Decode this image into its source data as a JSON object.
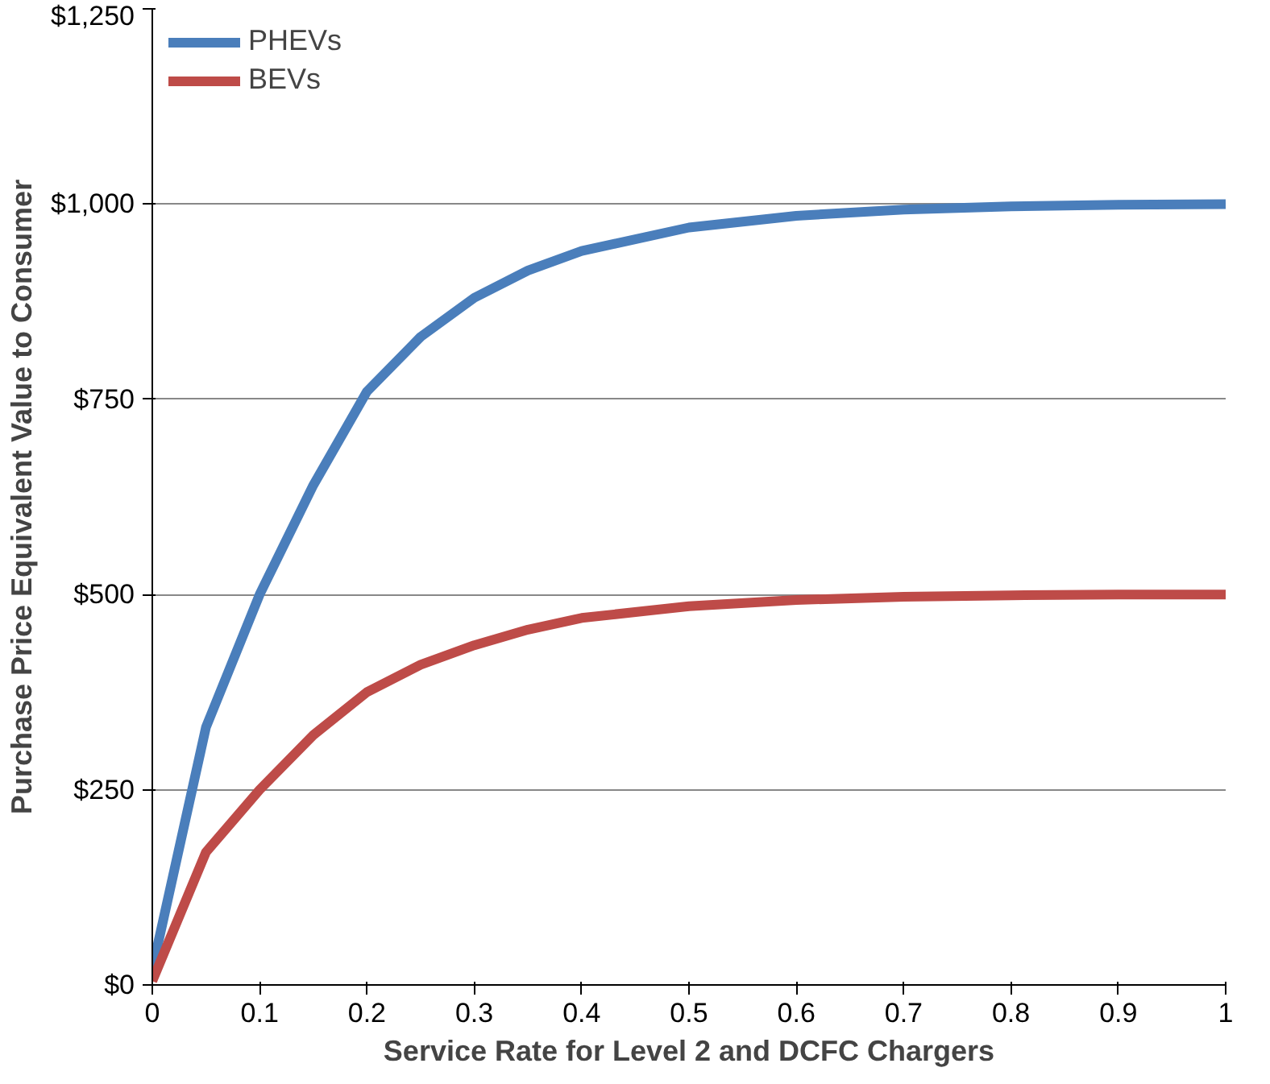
{
  "chart_data": {
    "type": "line",
    "xlabel": "Service Rate for Level 2 and DCFC Chargers",
    "ylabel": "Purchase Price Equivalent Value to Consumer",
    "x": [
      0,
      0.05,
      0.1,
      0.15,
      0.2,
      0.25,
      0.3,
      0.35,
      0.4,
      0.5,
      0.6,
      0.7,
      0.8,
      0.9,
      1
    ],
    "series": [
      {
        "name": "PHEVs",
        "color": "#4a7ebb",
        "values": [
          20,
          330,
          500,
          640,
          760,
          830,
          880,
          915,
          940,
          970,
          985,
          993,
          997,
          999,
          1000
        ]
      },
      {
        "name": "BEVs",
        "color": "#be4b48",
        "values": [
          5,
          170,
          250,
          320,
          375,
          410,
          435,
          455,
          470,
          485,
          493,
          497,
          499,
          500,
          500
        ]
      }
    ],
    "xlim": [
      0,
      1
    ],
    "ylim": [
      0,
      1250
    ],
    "xticks": [
      0,
      0.1,
      0.2,
      0.3,
      0.4,
      0.5,
      0.6,
      0.7,
      0.8,
      0.9,
      1
    ],
    "yticks": [
      {
        "value": 0,
        "label": "$0"
      },
      {
        "value": 250,
        "label": "$250"
      },
      {
        "value": 500,
        "label": "$500"
      },
      {
        "value": 750,
        "label": "$750"
      },
      {
        "value": 1000,
        "label": "$1,000"
      },
      {
        "value": 1250,
        "label": "$1,250"
      }
    ],
    "grid": "y",
    "legend": "top left",
    "line_style": "solid",
    "marker": "none"
  }
}
